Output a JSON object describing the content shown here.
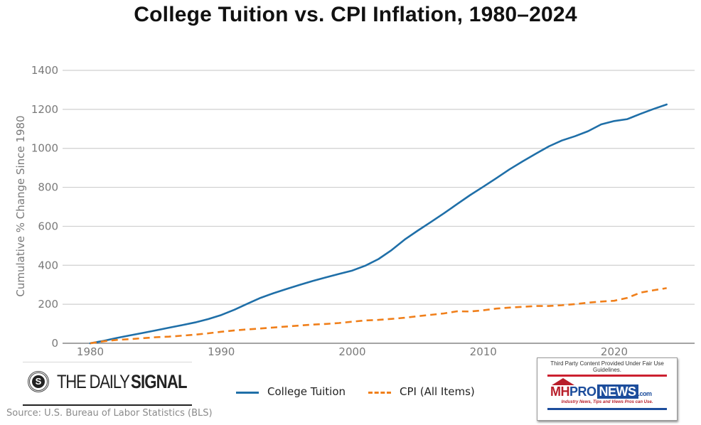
{
  "chart_data": {
    "type": "line",
    "title": "College Tuition vs. CPI Inflation, 1980–2024",
    "xlabel": "",
    "ylabel": "Cumulative % Change Since 1980",
    "xlim": [
      1979,
      2028
    ],
    "ylim": [
      0,
      1400
    ],
    "x_ticks": [
      1980,
      1990,
      2000,
      2010,
      2020
    ],
    "x_tick_labels": [
      "1980",
      "1990",
      "2000",
      "2010",
      "2020"
    ],
    "y_ticks": [
      0,
      200,
      400,
      600,
      800,
      1000,
      1200,
      1400
    ],
    "y_tick_labels": [
      "0",
      "200",
      "400",
      "600",
      "800",
      "1000",
      "1200",
      "1400"
    ],
    "grid": "horizontal",
    "legend_position": "bottom-center",
    "x": [
      1980,
      1981,
      1982,
      1983,
      1984,
      1985,
      1986,
      1987,
      1988,
      1989,
      1990,
      1991,
      1992,
      1993,
      1994,
      1995,
      1996,
      1997,
      1998,
      1999,
      2000,
      2001,
      2002,
      2003,
      2004,
      2005,
      2006,
      2007,
      2008,
      2009,
      2010,
      2011,
      2012,
      2013,
      2014,
      2015,
      2016,
      2017,
      2018,
      2019,
      2020,
      2021,
      2022,
      2023,
      2024
    ],
    "series": [
      {
        "name": "College Tuition",
        "color": "#1f6fa8",
        "style": "solid",
        "values": [
          0,
          12,
          27,
          40,
          53,
          66,
          80,
          93,
          107,
          124,
          145,
          172,
          203,
          233,
          257,
          279,
          300,
          320,
          338,
          356,
          373,
          398,
          432,
          478,
          532,
          578,
          622,
          667,
          714,
          760,
          803,
          847,
          892,
          933,
          972,
          1010,
          1040,
          1062,
          1088,
          1123,
          1140,
          1150,
          1177,
          1202,
          1225
        ]
      },
      {
        "name": "CPI (All Items)",
        "color": "#f07f1a",
        "style": "dashed",
        "values": [
          0,
          10,
          17,
          21,
          26,
          31,
          34,
          39,
          44,
          51,
          59,
          66,
          71,
          76,
          81,
          86,
          91,
          96,
          99,
          104,
          111,
          117,
          120,
          125,
          131,
          139,
          146,
          153,
          164,
          163,
          169,
          178,
          183,
          187,
          191,
          191,
          195,
          201,
          208,
          214,
          218,
          233,
          260,
          272,
          283
        ]
      }
    ]
  },
  "logo": {
    "badge_letter": "S",
    "the_daily": "THE DAILY",
    "signal": "SIGNAL"
  },
  "source": "Source: U.S. Bureau of Labor Statistics (BLS)",
  "watermark": {
    "fair_use": "Third Party Content Provided Under Fair Use Guidelines.",
    "mh": "MH",
    "pro": "PRO",
    "news": "NEWS",
    "com": ".com",
    "tagline": "Industry News, Tips and Views Pros can Use."
  }
}
